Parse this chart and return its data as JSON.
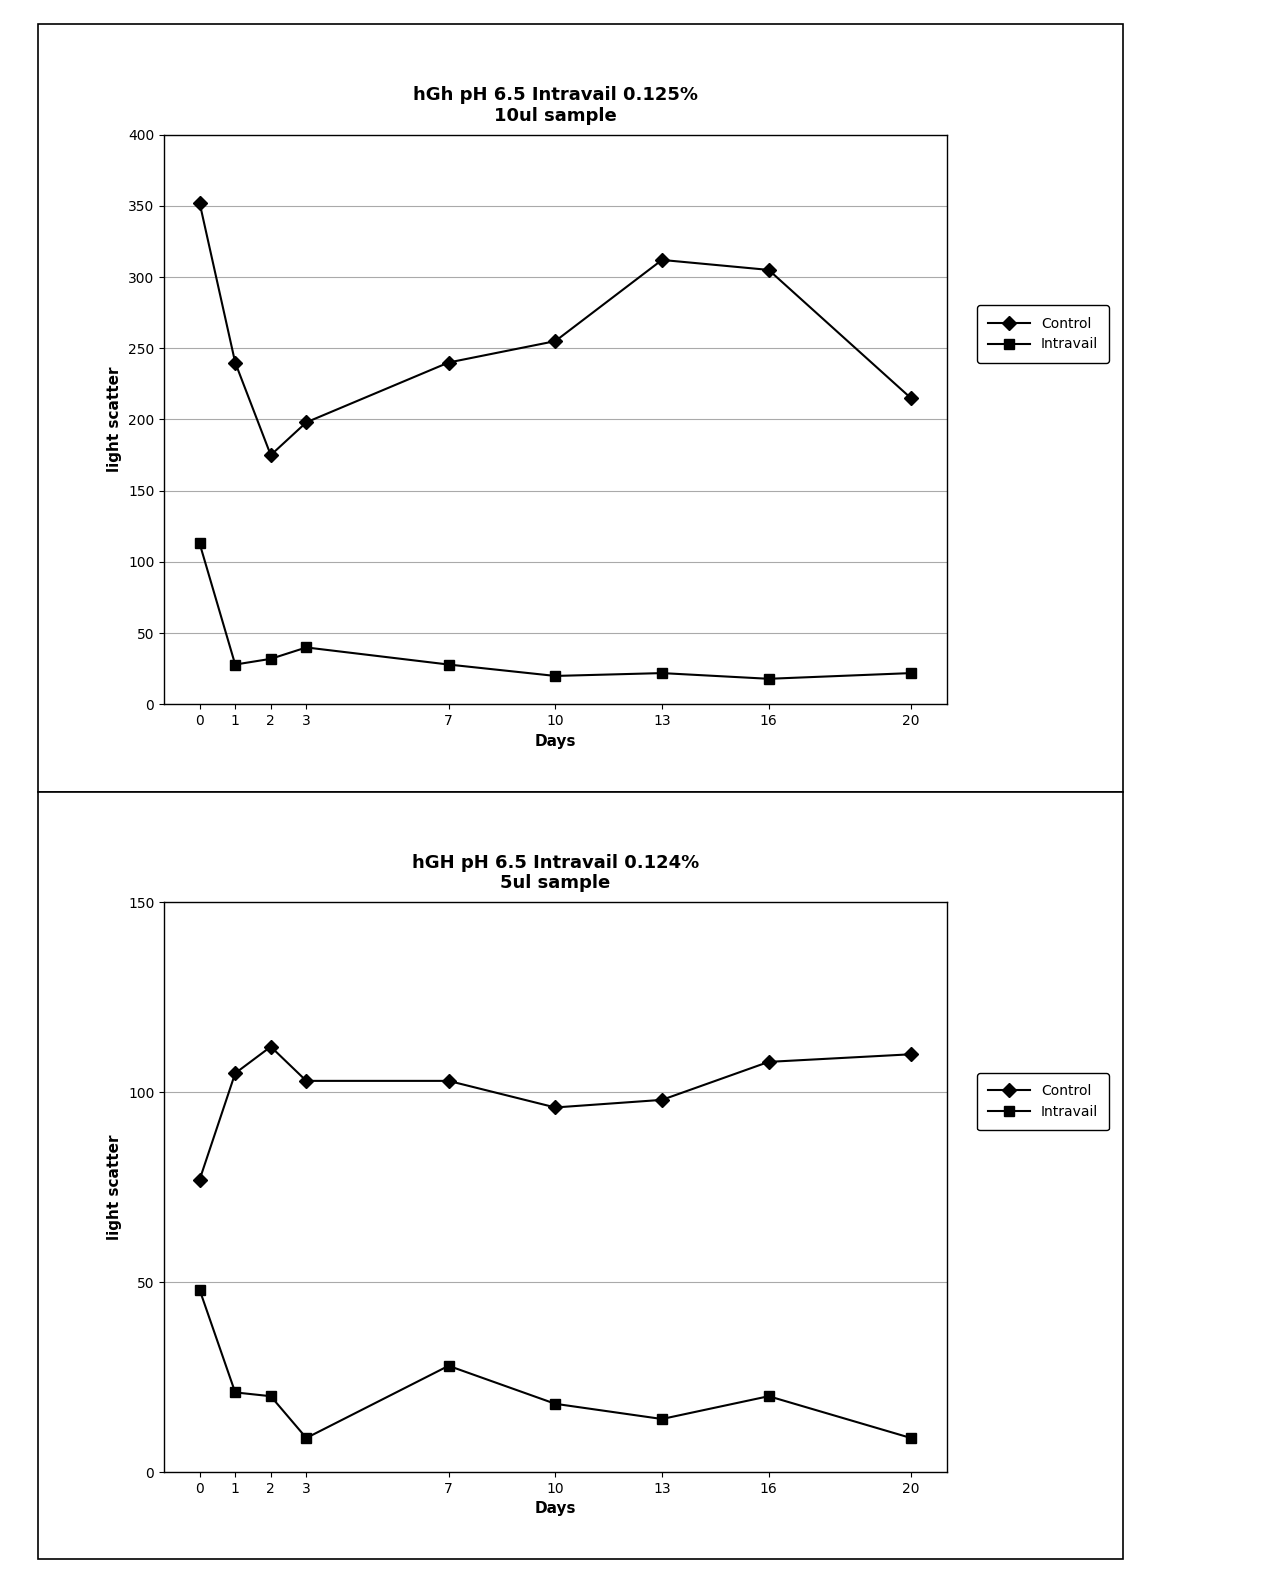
{
  "plot1": {
    "title_line1": "hGh pH 6.5 Intravail 0.125%",
    "title_line2": "10ul sample",
    "days": [
      0,
      1,
      2,
      3,
      7,
      10,
      13,
      16,
      20
    ],
    "control": [
      352,
      240,
      175,
      198,
      240,
      255,
      312,
      305,
      215
    ],
    "intravail": [
      113,
      28,
      32,
      40,
      28,
      20,
      22,
      18,
      22
    ],
    "ylabel": "light scatter",
    "xlabel": "Days",
    "ylim": [
      0,
      400
    ],
    "yticks": [
      0,
      50,
      100,
      150,
      200,
      250,
      300,
      350,
      400
    ]
  },
  "plot2": {
    "title_line1": "hGH pH 6.5 Intravail 0.124%",
    "title_line2": "5ul sample",
    "days": [
      0,
      1,
      2,
      3,
      7,
      10,
      13,
      16,
      20
    ],
    "control": [
      77,
      105,
      112,
      103,
      103,
      96,
      98,
      108,
      110
    ],
    "intravail": [
      48,
      21,
      20,
      9,
      28,
      18,
      14,
      20,
      9
    ],
    "ylabel": "light scatter",
    "xlabel": "Days",
    "ylim": [
      0,
      150
    ],
    "yticks": [
      0,
      50,
      100,
      150
    ]
  },
  "line_color": "#000000",
  "control_marker": "D",
  "intravail_marker": "s",
  "legend_control": "Control",
  "legend_intravail": "Intravail",
  "plot_bg_color": "#ffffff",
  "fig_bg_color": "#ffffff",
  "panel_bg_color": "#ffffff",
  "title_fontsize": 13,
  "label_fontsize": 11,
  "tick_fontsize": 10,
  "legend_fontsize": 10,
  "grid_color": "#aaaaaa",
  "marker_size": 7,
  "line_width": 1.5
}
